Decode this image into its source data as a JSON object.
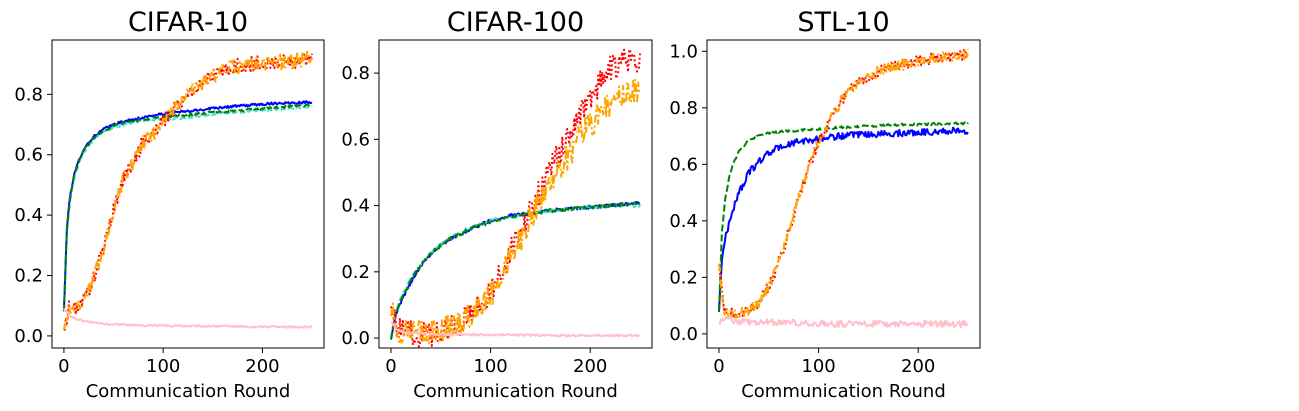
{
  "chart_data": [
    {
      "type": "line",
      "title": "CIFAR-10",
      "xlabel": "Communication Round",
      "ylabel": "",
      "xlim": [
        -12,
        262
      ],
      "ylim": [
        -0.04,
        0.98
      ],
      "xticks": [
        0,
        100,
        200
      ],
      "yticks": [
        0.0,
        0.2,
        0.4,
        0.6,
        0.8
      ],
      "ytick_labels": [
        "0.0",
        "0.2",
        "0.4",
        "0.6",
        "0.8"
      ],
      "grid": false,
      "series": [
        {
          "color": "#0000ff",
          "style": "solid",
          "noise": 0.004,
          "x": [
            0,
            3,
            6,
            10,
            15,
            20,
            30,
            40,
            50,
            60,
            75,
            90,
            110,
            130,
            150,
            170,
            190,
            210,
            230,
            250
          ],
          "y": [
            0.08,
            0.36,
            0.46,
            0.53,
            0.58,
            0.62,
            0.66,
            0.685,
            0.7,
            0.71,
            0.72,
            0.73,
            0.74,
            0.745,
            0.755,
            0.76,
            0.765,
            0.77,
            0.772,
            0.775
          ]
        },
        {
          "color": "#40e0d0",
          "style": "dashed",
          "noise": 0.004,
          "x": [
            0,
            3,
            6,
            10,
            15,
            20,
            30,
            40,
            50,
            60,
            75,
            90,
            110,
            130,
            150,
            170,
            190,
            210,
            230,
            250
          ],
          "y": [
            0.08,
            0.34,
            0.45,
            0.52,
            0.575,
            0.61,
            0.65,
            0.675,
            0.69,
            0.7,
            0.71,
            0.715,
            0.72,
            0.725,
            0.735,
            0.74,
            0.745,
            0.75,
            0.755,
            0.76
          ]
        },
        {
          "color": "#008000",
          "style": "dashed",
          "noise": 0.004,
          "x": [
            0,
            3,
            6,
            10,
            15,
            20,
            30,
            40,
            50,
            60,
            75,
            90,
            110,
            130,
            150,
            170,
            190,
            210,
            230,
            250
          ],
          "y": [
            0.08,
            0.35,
            0.45,
            0.525,
            0.578,
            0.615,
            0.655,
            0.68,
            0.695,
            0.705,
            0.715,
            0.722,
            0.728,
            0.733,
            0.74,
            0.745,
            0.75,
            0.755,
            0.76,
            0.765
          ]
        },
        {
          "color": "#ff0000",
          "style": "dotted",
          "noise": 0.025,
          "x": [
            0,
            5,
            10,
            15,
            20,
            30,
            40,
            50,
            60,
            70,
            80,
            90,
            100,
            110,
            120,
            130,
            150,
            170,
            190,
            210,
            230,
            250
          ],
          "y": [
            0.01,
            0.09,
            0.09,
            0.1,
            0.12,
            0.19,
            0.29,
            0.42,
            0.52,
            0.58,
            0.64,
            0.67,
            0.71,
            0.75,
            0.78,
            0.82,
            0.86,
            0.89,
            0.9,
            0.905,
            0.91,
            0.92
          ]
        },
        {
          "color": "#ffa500",
          "style": "dashdot",
          "noise": 0.025,
          "x": [
            0,
            5,
            10,
            15,
            20,
            30,
            40,
            50,
            60,
            70,
            80,
            90,
            100,
            110,
            120,
            130,
            150,
            170,
            190,
            210,
            230,
            250
          ],
          "y": [
            0.01,
            0.09,
            0.09,
            0.1,
            0.12,
            0.19,
            0.29,
            0.42,
            0.52,
            0.58,
            0.64,
            0.67,
            0.71,
            0.75,
            0.78,
            0.82,
            0.86,
            0.89,
            0.9,
            0.905,
            0.91,
            0.92
          ]
        },
        {
          "color": "#ffc0cb",
          "style": "solid",
          "noise": 0.003,
          "x": [
            0,
            5,
            10,
            20,
            40,
            80,
            120,
            160,
            200,
            250
          ],
          "y": [
            0.09,
            0.07,
            0.06,
            0.05,
            0.04,
            0.035,
            0.033,
            0.032,
            0.03,
            0.03
          ]
        }
      ]
    },
    {
      "type": "line",
      "title": "CIFAR-100",
      "xlabel": "Communication Round",
      "ylabel": "",
      "xlim": [
        -12,
        262
      ],
      "ylim": [
        -0.03,
        0.9
      ],
      "xticks": [
        0,
        100,
        200
      ],
      "yticks": [
        0.0,
        0.2,
        0.4,
        0.6,
        0.8
      ],
      "ytick_labels": [
        "0.0",
        "0.2",
        "0.4",
        "0.6",
        "0.8"
      ],
      "grid": false,
      "series": [
        {
          "color": "#0000ff",
          "style": "solid",
          "noise": 0.005,
          "x": [
            0,
            5,
            10,
            20,
            30,
            40,
            50,
            60,
            80,
            100,
            120,
            140,
            160,
            180,
            200,
            220,
            240,
            250
          ],
          "y": [
            0.0,
            0.07,
            0.11,
            0.17,
            0.22,
            0.255,
            0.28,
            0.3,
            0.33,
            0.355,
            0.37,
            0.375,
            0.385,
            0.39,
            0.395,
            0.4,
            0.405,
            0.41
          ]
        },
        {
          "color": "#40e0d0",
          "style": "dashed",
          "noise": 0.005,
          "x": [
            0,
            5,
            10,
            20,
            30,
            40,
            50,
            60,
            80,
            100,
            120,
            140,
            160,
            180,
            200,
            220,
            240,
            250
          ],
          "y": [
            0.0,
            0.08,
            0.12,
            0.18,
            0.225,
            0.26,
            0.285,
            0.305,
            0.335,
            0.355,
            0.365,
            0.375,
            0.385,
            0.39,
            0.395,
            0.4,
            0.4,
            0.4
          ]
        },
        {
          "color": "#008000",
          "style": "dashed",
          "noise": 0.005,
          "x": [
            0,
            5,
            10,
            20,
            30,
            40,
            50,
            60,
            80,
            100,
            120,
            140,
            160,
            180,
            200,
            220,
            240,
            250
          ],
          "y": [
            0.0,
            0.075,
            0.115,
            0.175,
            0.22,
            0.255,
            0.28,
            0.3,
            0.33,
            0.35,
            0.365,
            0.375,
            0.385,
            0.39,
            0.395,
            0.4,
            0.405,
            0.41
          ]
        },
        {
          "color": "#ff0000",
          "style": "dotted",
          "noise": 0.04,
          "x": [
            0,
            5,
            10,
            20,
            30,
            40,
            60,
            80,
            90,
            100,
            110,
            120,
            130,
            140,
            150,
            160,
            170,
            180,
            190,
            200,
            210,
            220,
            230,
            240,
            250
          ],
          "y": [
            0.13,
            0.03,
            0.02,
            0.015,
            0.012,
            0.015,
            0.03,
            0.07,
            0.1,
            0.14,
            0.2,
            0.26,
            0.32,
            0.38,
            0.45,
            0.51,
            0.56,
            0.62,
            0.68,
            0.72,
            0.77,
            0.81,
            0.83,
            0.84,
            0.83
          ]
        },
        {
          "color": "#ffa500",
          "style": "dashdot",
          "noise": 0.04,
          "x": [
            0,
            5,
            10,
            20,
            30,
            40,
            60,
            80,
            90,
            100,
            110,
            120,
            130,
            140,
            150,
            160,
            170,
            180,
            190,
            200,
            210,
            220,
            230,
            240,
            250
          ],
          "y": [
            0.1,
            0.03,
            0.02,
            0.015,
            0.012,
            0.015,
            0.03,
            0.07,
            0.1,
            0.13,
            0.19,
            0.25,
            0.3,
            0.36,
            0.42,
            0.47,
            0.52,
            0.56,
            0.61,
            0.64,
            0.68,
            0.71,
            0.73,
            0.74,
            0.75
          ]
        },
        {
          "color": "#ffc0cb",
          "style": "solid",
          "noise": 0.003,
          "x": [
            0,
            5,
            10,
            20,
            40,
            80,
            120,
            160,
            200,
            250
          ],
          "y": [
            0.05,
            0.03,
            0.02,
            0.015,
            0.012,
            0.01,
            0.01,
            0.008,
            0.008,
            0.008
          ]
        }
      ]
    },
    {
      "type": "line",
      "title": "STL-10",
      "xlabel": "Communication Round",
      "ylabel": "",
      "xlim": [
        -12,
        262
      ],
      "ylim": [
        -0.05,
        1.04
      ],
      "xticks": [
        0,
        100,
        200
      ],
      "yticks": [
        0.0,
        0.2,
        0.4,
        0.6,
        0.8,
        1.0
      ],
      "ytick_labels": [
        "0.0",
        "0.2",
        "0.4",
        "0.6",
        "0.8",
        "1.0"
      ],
      "grid": false,
      "series": [
        {
          "color": "#0000ff",
          "style": "solid",
          "noise": 0.012,
          "x": [
            0,
            3,
            6,
            10,
            15,
            20,
            30,
            40,
            50,
            60,
            80,
            100,
            120,
            150,
            180,
            210,
            250
          ],
          "y": [
            0.08,
            0.27,
            0.33,
            0.39,
            0.45,
            0.5,
            0.57,
            0.61,
            0.64,
            0.66,
            0.68,
            0.69,
            0.7,
            0.705,
            0.71,
            0.715,
            0.72
          ]
        },
        {
          "color": "#008000",
          "style": "dashed",
          "noise": 0.004,
          "x": [
            0,
            3,
            6,
            10,
            15,
            20,
            30,
            40,
            50,
            60,
            80,
            100,
            120,
            150,
            180,
            210,
            250
          ],
          "y": [
            0.08,
            0.36,
            0.47,
            0.55,
            0.61,
            0.645,
            0.685,
            0.7,
            0.71,
            0.715,
            0.72,
            0.725,
            0.73,
            0.735,
            0.74,
            0.742,
            0.745
          ]
        },
        {
          "color": "#ff0000",
          "style": "dotted",
          "noise": 0.02,
          "x": [
            0,
            5,
            10,
            20,
            30,
            40,
            50,
            60,
            70,
            80,
            90,
            100,
            110,
            120,
            130,
            140,
            160,
            180,
            200,
            220,
            250
          ],
          "y": [
            0.25,
            0.08,
            0.07,
            0.07,
            0.08,
            0.11,
            0.17,
            0.25,
            0.36,
            0.48,
            0.59,
            0.68,
            0.75,
            0.81,
            0.86,
            0.89,
            0.93,
            0.95,
            0.965,
            0.975,
            0.99
          ]
        },
        {
          "color": "#ffa500",
          "style": "dashdot",
          "noise": 0.02,
          "x": [
            0,
            5,
            10,
            20,
            30,
            40,
            50,
            60,
            70,
            80,
            90,
            100,
            110,
            120,
            130,
            140,
            160,
            180,
            200,
            220,
            250
          ],
          "y": [
            0.25,
            0.08,
            0.07,
            0.07,
            0.08,
            0.11,
            0.17,
            0.25,
            0.36,
            0.48,
            0.59,
            0.68,
            0.75,
            0.81,
            0.86,
            0.89,
            0.93,
            0.95,
            0.965,
            0.975,
            0.99
          ]
        },
        {
          "color": "#ffc0cb",
          "style": "solid",
          "noise": 0.012,
          "x": [
            0,
            5,
            10,
            20,
            40,
            80,
            120,
            160,
            200,
            250
          ],
          "y": [
            0.04,
            0.06,
            0.05,
            0.045,
            0.04,
            0.04,
            0.035,
            0.035,
            0.035,
            0.035
          ]
        }
      ]
    }
  ]
}
